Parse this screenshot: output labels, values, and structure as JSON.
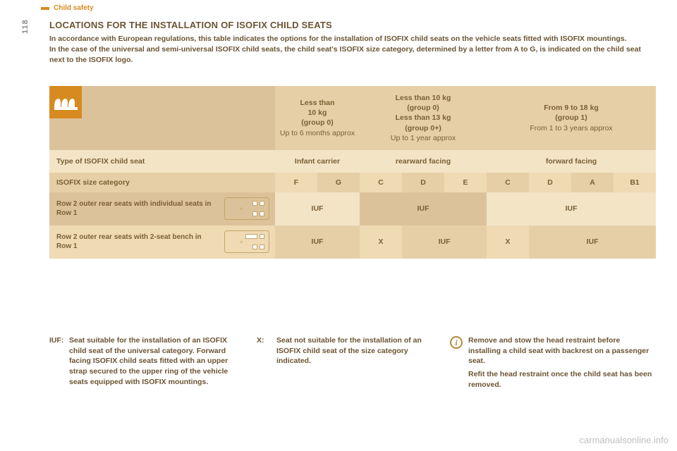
{
  "colors": {
    "accent": "#d68a1f",
    "text": "#6b5432",
    "band_a": "#f3e4c6",
    "band_b": "#e6cfa6",
    "band_c": "#efdab4",
    "band_d": "#dcc29a"
  },
  "page": {
    "section": "Child safety",
    "number": "118",
    "heading": "LOCATIONS FOR THE INSTALLATION OF ISOFIX CHILD SEATS",
    "intro": "In accordance with European regulations, this table indicates the options for the installation of ISOFIX child seats on the vehicle seats fitted with ISOFIX mountings.\nIn the case of the universal and semi-universal ISOFIX child seats, the child seat's ISOFIX size category, determined by a letter from A to G, is indicated on the child seat next to the ISOFIX logo."
  },
  "table": {
    "weight_groups": [
      {
        "bold1": "Less than",
        "bold2": "10 kg",
        "bold3": "(group 0)",
        "plain": "Up to 6 months approx"
      },
      {
        "bold1": "Less than 10 kg",
        "bold2": "(group 0)",
        "bold3": "Less than 13 kg",
        "bold4": "(group 0+)",
        "plain": "Up to 1 year approx"
      },
      {
        "bold1": "From 9 to 18 kg",
        "bold2": "(group 1)",
        "plain": "From 1 to 3 years approx"
      }
    ],
    "row_type_label": "Type of ISOFIX child seat",
    "types": [
      "Infant carrier",
      "rearward facing",
      "forward facing"
    ],
    "row_size_label": "ISOFIX size category",
    "sizes": [
      "F",
      "G",
      "C",
      "D",
      "E",
      "C",
      "D",
      "A",
      "B1"
    ],
    "seat_rows": [
      {
        "label": "Row 2 outer rear seats with individual seats in Row 1",
        "cells": [
          {
            "text": "IUF",
            "span": 2
          },
          {
            "text": "IUF",
            "span": 3
          },
          {
            "text": "IUF",
            "span": 4
          }
        ]
      },
      {
        "label": "Row 2 outer rear seats with 2-seat bench in Row 1",
        "cells": [
          {
            "text": "IUF",
            "span": 2
          },
          {
            "text": "X",
            "span": 1
          },
          {
            "text": "IUF",
            "span": 2
          },
          {
            "text": "X",
            "span": 1
          },
          {
            "text": "IUF",
            "span": 3
          }
        ]
      }
    ]
  },
  "footer": {
    "iuf": "Seat suitable for the installation of an ISOFIX child seat of the universal category. Forward facing ISOFIX child seats fitted with an upper strap secured to the upper ring of the vehicle seats equipped with ISOFIX mountings.",
    "x": "Seat not suitable for the installation of an ISOFIX child seat of the size category indicated.",
    "info": "Remove and stow the head restraint before installing a child seat with backrest on a passenger seat.\nRefit the head restraint once the child seat has been removed."
  },
  "watermark": "carmanualsonline.info"
}
